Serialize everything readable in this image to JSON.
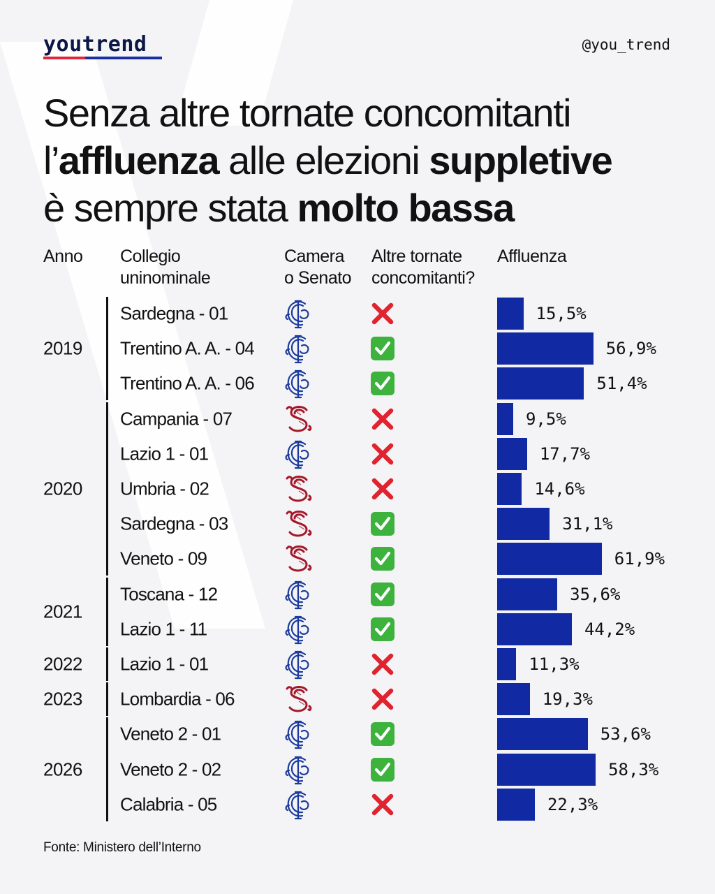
{
  "brand": {
    "logo": "youtrend",
    "handle": "@you_trend"
  },
  "title": {
    "line1": "Senza altre tornate concomitanti",
    "line2_pre": "l’",
    "line2_bold1": "affluenza",
    "line2_mid": " alle elezioni ",
    "line2_bold2": "suppletive",
    "line3_pre": "è sempre stata ",
    "line3_bold": "molto bassa"
  },
  "headers": {
    "anno": "Anno",
    "collegio_1": "Collegio",
    "collegio_2": "uninominale",
    "camera_1": "Camera",
    "camera_2": "o Senato",
    "altre_1": "Altre tornate",
    "altre_2": "concomitanti?",
    "affluenza": "Affluenza"
  },
  "years": [
    {
      "label": "2019",
      "start": 0,
      "end": 2
    },
    {
      "label": "2020",
      "start": 3,
      "end": 7
    },
    {
      "label": "2021",
      "start": 8,
      "end": 9
    },
    {
      "label": "2022",
      "start": 10,
      "end": 10
    },
    {
      "label": "2023",
      "start": 11,
      "end": 11
    },
    {
      "label": "2026",
      "start": 12,
      "end": 14
    }
  ],
  "chart_data": {
    "type": "bar",
    "orientation": "horizontal",
    "unit": "%",
    "xlim": [
      0,
      100
    ],
    "categories": [
      "Sardegna - 01",
      "Trentino A. A. - 04",
      "Trentino A. A. - 06",
      "Campania - 07",
      "Lazio 1 - 01",
      "Umbria - 02",
      "Sardegna - 03",
      "Veneto - 09",
      "Toscana - 12",
      "Lazio 1 - 11",
      "Lazio 1 - 01",
      "Lombardia - 06",
      "Veneto 2 - 01",
      "Veneto 2 - 02",
      "Calabria - 05"
    ],
    "values": [
      15.5,
      56.9,
      51.4,
      9.5,
      17.7,
      14.6,
      31.1,
      61.9,
      35.6,
      44.2,
      11.3,
      19.3,
      53.6,
      58.3,
      22.3
    ],
    "value_labels": [
      "15,5%",
      "56,9%",
      "51,4%",
      "9,5%",
      "17,7%",
      "14,6%",
      "31,1%",
      "61,9%",
      "35,6%",
      "44,2%",
      "11,3%",
      "19,3%",
      "53,6%",
      "58,3%",
      "22,3%"
    ],
    "chamber_icon": [
      "camera-icon",
      "camera-icon",
      "camera-icon",
      "senato-icon",
      "camera-icon",
      "senato-icon",
      "senato-icon",
      "senato-icon",
      "camera-icon",
      "camera-icon",
      "camera-icon",
      "senato-icon",
      "camera-icon",
      "camera-icon",
      "camera-icon"
    ],
    "concurrent_icon": [
      "cross-mark-icon",
      "check-mark-icon",
      "check-mark-icon",
      "cross-mark-icon",
      "cross-mark-icon",
      "cross-mark-icon",
      "check-mark-icon",
      "check-mark-icon",
      "check-mark-icon",
      "check-mark-icon",
      "cross-mark-icon",
      "cross-mark-icon",
      "check-mark-icon",
      "check-mark-icon",
      "cross-mark-icon"
    ],
    "bar_color": "#1129a3"
  },
  "colors": {
    "camera": "#1c3b9c",
    "senato": "#a3192a",
    "check": "#3db23d",
    "cross": "#e0232f",
    "brand_red": "#e0263a",
    "brand_blue": "#1b2fa5"
  },
  "source": "Fonte: Ministero dell’Interno"
}
